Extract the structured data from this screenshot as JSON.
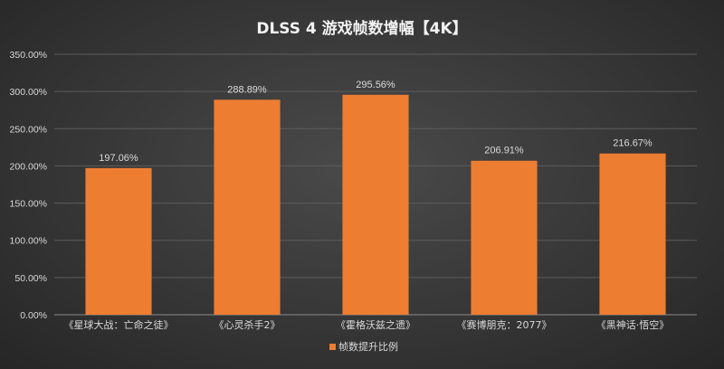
{
  "colors": {
    "bar": "#ED7D31",
    "text": "#D9D9D9",
    "title": "#F2F2F2"
  },
  "chart_data": {
    "type": "bar",
    "title": "DLSS 4 游戏帧数增幅【4K】",
    "xlabel": "",
    "ylabel": "",
    "categories": [
      "《星球大战：亡命之徒》",
      "《心灵杀手2》",
      "《霍格沃兹之遗》",
      "《赛博朋克：2077》",
      "《黑神话·悟空》"
    ],
    "series": [
      {
        "name": "帧数提升比例",
        "values": [
          197.06,
          288.89,
          295.56,
          206.91,
          216.67
        ],
        "labels": [
          "197.06%",
          "288.89%",
          "295.56%",
          "206.91%",
          "216.67%"
        ]
      }
    ],
    "ylim": [
      0,
      350
    ],
    "yticks": [
      0,
      50,
      100,
      150,
      200,
      250,
      300,
      350
    ],
    "ytick_labels": [
      "0.00%",
      "50.00%",
      "100.00%",
      "150.00%",
      "200.00%",
      "250.00%",
      "300.00%",
      "350.00%"
    ],
    "grid": true,
    "legend": "bottom-center"
  }
}
